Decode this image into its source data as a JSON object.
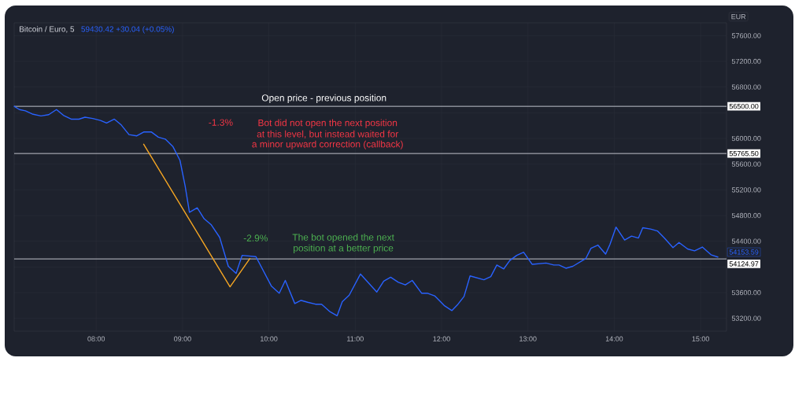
{
  "chart_data": {
    "type": "line",
    "title": "Bitcoin / Euro, 5",
    "subtitle": "59430.42 +30.04 (+0.05%)",
    "ylabel": "EUR",
    "x": [
      7.05,
      7.11,
      7.18,
      7.26,
      7.36,
      7.45,
      7.54,
      7.62,
      7.71,
      7.8,
      7.87,
      7.96,
      8.05,
      8.12,
      8.21,
      8.29,
      8.38,
      8.47,
      8.55,
      8.64,
      8.72,
      8.8,
      8.89,
      8.97,
      9.03,
      9.08,
      9.17,
      9.25,
      9.33,
      9.43,
      9.53,
      9.62,
      9.69,
      9.85,
      10.03,
      10.12,
      10.19,
      10.3,
      10.37,
      10.45,
      10.54,
      10.61,
      10.71,
      10.79,
      10.85,
      10.93,
      11.06,
      11.25,
      11.33,
      11.41,
      11.5,
      11.58,
      11.66,
      11.77,
      11.84,
      11.92,
      12.03,
      12.12,
      12.19,
      12.26,
      12.33,
      12.49,
      12.57,
      12.64,
      12.72,
      12.79,
      12.87,
      12.95,
      13.05,
      13.21,
      13.3,
      13.36,
      13.44,
      13.52,
      13.67,
      13.73,
      13.81,
      13.9,
      13.95,
      14.02,
      14.12,
      14.2,
      14.28,
      14.33,
      14.42,
      14.5,
      14.58,
      14.68,
      14.75,
      14.85,
      14.93,
      15.02,
      15.12,
      15.2
    ],
    "xlim": [
      7.05,
      15.3
    ],
    "ylim": [
      53000,
      57800
    ],
    "xticks": [
      {
        "value": 8,
        "label": "08:00"
      },
      {
        "value": 9,
        "label": "09:00"
      },
      {
        "value": 10,
        "label": "10:00"
      },
      {
        "value": 11,
        "label": "11:00"
      },
      {
        "value": 12,
        "label": "12:00"
      },
      {
        "value": 13,
        "label": "13:00"
      },
      {
        "value": 14,
        "label": "14:00"
      },
      {
        "value": 15,
        "label": "15:00"
      }
    ],
    "yticks": [
      {
        "value": 53200,
        "label": "53200.00"
      },
      {
        "value": 53600,
        "label": "53600.00"
      },
      {
        "value": 54000,
        "label": null
      },
      {
        "value": 54400,
        "label": "54400.00"
      },
      {
        "value": 54800,
        "label": "54800.00"
      },
      {
        "value": 55200,
        "label": "55200.00"
      },
      {
        "value": 55600,
        "label": "55600.00"
      },
      {
        "value": 56000,
        "label": "56000.00"
      },
      {
        "value": 56400,
        "label": null
      },
      {
        "value": 56800,
        "label": "56800.00"
      },
      {
        "value": 57200,
        "label": "57200.00"
      },
      {
        "value": 57600,
        "label": "57600.00"
      }
    ],
    "grid": true,
    "series": [
      {
        "color": "#2962ff",
        "values": [
          56500,
          56450,
          56430,
          56380,
          56350,
          56370,
          56450,
          56360,
          56300,
          56300,
          56330,
          56310,
          56280,
          56240,
          56300,
          56210,
          56060,
          56040,
          56100,
          56100,
          56020,
          55990,
          55870,
          55660,
          55260,
          54850,
          54920,
          54750,
          54660,
          54460,
          54010,
          53900,
          54180,
          54160,
          53700,
          53590,
          53790,
          53430,
          53480,
          53450,
          53420,
          53420,
          53300,
          53240,
          53460,
          53560,
          53890,
          53610,
          53780,
          53840,
          53760,
          53720,
          53790,
          53590,
          53590,
          53550,
          53400,
          53320,
          53420,
          53540,
          53860,
          53800,
          53850,
          54030,
          53970,
          54100,
          54180,
          54230,
          54040,
          54060,
          54030,
          54030,
          53980,
          54010,
          54130,
          54290,
          54340,
          54200,
          54350,
          54620,
          54420,
          54480,
          54450,
          54610,
          54590,
          54560,
          54450,
          54300,
          54380,
          54280,
          54250,
          54310,
          54190,
          54153.59
        ],
        "value_labels": [
          null,
          null,
          null,
          null,
          null,
          null,
          null,
          null,
          null,
          null,
          null,
          null,
          null,
          null,
          null,
          null,
          null,
          null,
          null,
          null,
          null,
          null,
          null,
          null,
          null,
          null,
          null,
          null,
          null,
          null,
          null,
          null,
          null,
          null,
          null,
          null,
          null,
          null,
          null,
          null,
          null,
          null,
          null,
          null,
          null,
          null,
          null,
          null,
          null,
          null,
          null,
          null,
          null,
          null,
          null,
          null,
          null,
          null,
          null,
          null,
          null,
          null,
          null,
          null,
          null,
          null,
          null,
          null,
          null,
          null,
          null,
          null,
          null,
          null,
          null,
          null,
          null,
          null,
          null,
          null,
          null,
          null,
          null,
          null,
          null,
          null,
          null,
          null,
          null,
          null,
          null,
          null,
          null,
          "54153.59"
        ]
      },
      {
        "color": "#f5a623",
        "x": [
          8.55,
          9.55,
          9.78
        ],
        "values": [
          55910,
          53690,
          54130
        ]
      }
    ],
    "ref_lines": [
      {
        "axis": "y",
        "value": 56500,
        "label": "56500.00",
        "color": "#d1d4dc"
      },
      {
        "axis": "y",
        "value": 55765.5,
        "label": "55765.50",
        "color": "#d1d4dc"
      },
      {
        "axis": "y",
        "value": 54124.97,
        "label": "54124.97",
        "color": "#d1d4dc"
      }
    ],
    "annotations": [
      "Open price - previous position",
      "-1.3%",
      "Bot did not open the next position",
      "at this level, but instead waited for",
      "a minor upward correction (callback)",
      "-2.9%",
      "The bot opened the next",
      "position at a better price"
    ]
  }
}
